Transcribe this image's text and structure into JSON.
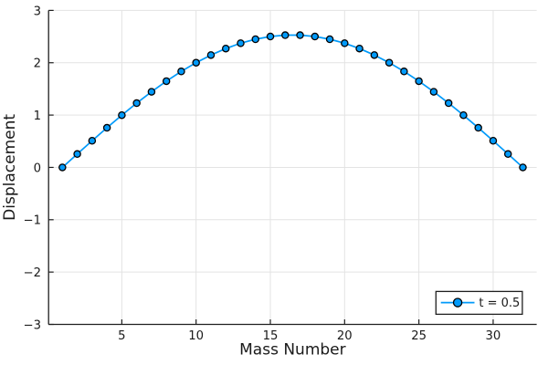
{
  "chart_data": {
    "type": "line",
    "title": "",
    "xlabel": "Mass Number",
    "ylabel": "Displacement",
    "x": [
      1,
      2,
      3,
      4,
      5,
      6,
      7,
      8,
      9,
      10,
      11,
      12,
      13,
      14,
      15,
      16,
      17,
      18,
      19,
      20,
      21,
      22,
      23,
      24,
      25,
      26,
      27,
      28,
      29,
      30,
      31,
      32
    ],
    "series": [
      {
        "name": "t = 0.5",
        "values": [
          0.0,
          0.256,
          0.509,
          0.757,
          0.998,
          1.228,
          1.445,
          1.648,
          1.834,
          2.001,
          2.147,
          2.271,
          2.373,
          2.449,
          2.501,
          2.527,
          2.527,
          2.501,
          2.449,
          2.373,
          2.271,
          2.147,
          2.001,
          1.834,
          1.648,
          1.445,
          1.228,
          0.998,
          0.757,
          0.509,
          0.256,
          0.0
        ],
        "color": "#009AFA",
        "marker": "circle",
        "marker_edge_color": "#000000"
      }
    ],
    "xlim": [
      0.07,
      32.93
    ],
    "ylim": [
      -3,
      3
    ],
    "xticks": [
      5,
      10,
      15,
      20,
      25,
      30
    ],
    "xtick_labels": [
      "5",
      "10",
      "15",
      "20",
      "25",
      "30"
    ],
    "yticks": [
      -3,
      -2,
      -1,
      0,
      1,
      2,
      3
    ],
    "ytick_labels": [
      "−3",
      "−2",
      "−1",
      "0",
      "1",
      "2",
      "3"
    ],
    "grid": true,
    "grid_color": "#E3E3E3",
    "axis_color": "#1f1f1f",
    "background_color": "#ffffff",
    "legend_position": "bottom-right"
  },
  "legend": {
    "label": "t = 0.5"
  }
}
